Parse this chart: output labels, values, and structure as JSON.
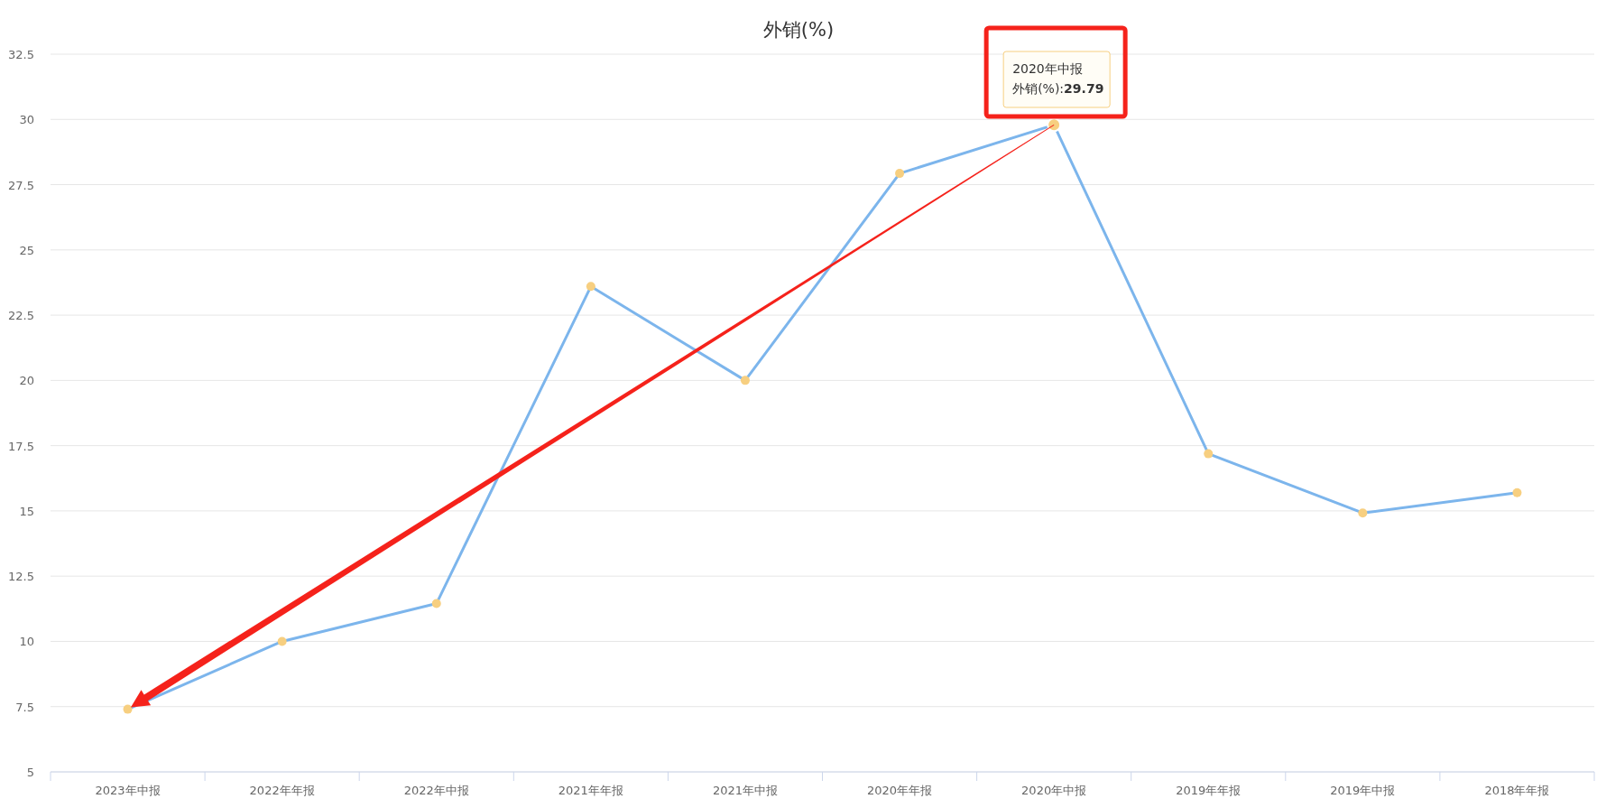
{
  "chart_data": {
    "type": "line",
    "title": "外销(%)",
    "categories": [
      "2023年中报",
      "2022年年报",
      "2022年中报",
      "2021年年报",
      "2021年中报",
      "2020年年报",
      "2020年中报",
      "2019年年报",
      "2019年中报",
      "2018年年报"
    ],
    "series": [
      {
        "color": "#7cb5ec",
        "values": [
          7.4,
          10.0,
          11.45,
          23.6,
          20.0,
          27.93,
          29.79,
          17.19,
          14.92,
          15.7
        ]
      }
    ],
    "ylim": [
      5,
      32.5
    ],
    "yticks": [
      5,
      7.5,
      10,
      12.5,
      15,
      17.5,
      20,
      22.5,
      25,
      27.5,
      30,
      32.5
    ],
    "grid": "y",
    "marker": "circle",
    "line_style": "solid",
    "annotations": [
      "2020年中报",
      "外销(%):29.79"
    ]
  }
}
